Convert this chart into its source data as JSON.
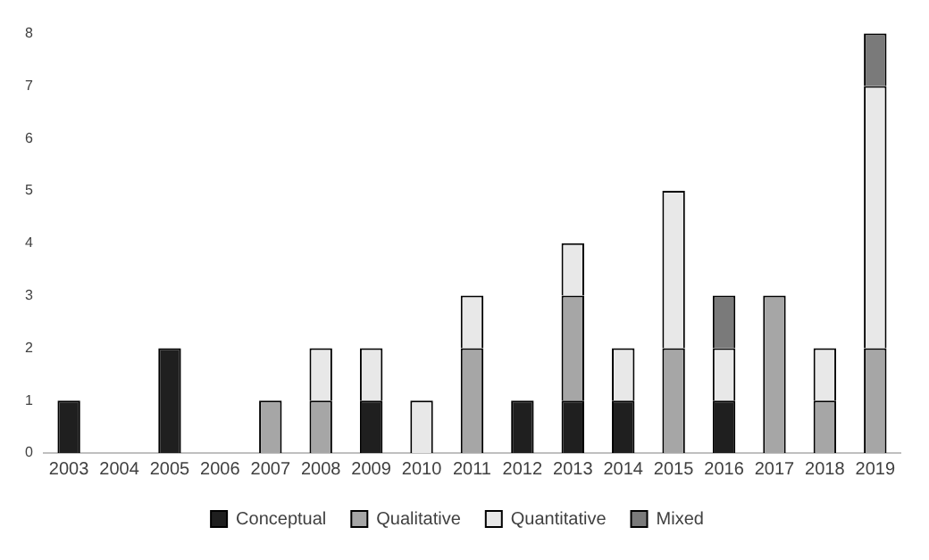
{
  "chart_data": {
    "type": "bar",
    "stacked": true,
    "categories": [
      "2003",
      "2004",
      "2005",
      "2006",
      "2007",
      "2008",
      "2009",
      "2010",
      "2011",
      "2012",
      "2013",
      "2014",
      "2015",
      "2016",
      "2017",
      "2018",
      "2019"
    ],
    "series": [
      {
        "name": "Conceptual",
        "color": "#1f1f1f",
        "values": [
          1,
          0,
          2,
          0,
          0,
          0,
          1,
          0,
          0,
          1,
          1,
          1,
          0,
          1,
          0,
          0,
          0
        ]
      },
      {
        "name": "Qualitative",
        "color": "#a6a6a6",
        "values": [
          0,
          0,
          0,
          0,
          1,
          1,
          0,
          0,
          2,
          0,
          2,
          0,
          2,
          0,
          3,
          1,
          2
        ]
      },
      {
        "name": "Quantitative",
        "color": "#e8e8e8",
        "values": [
          0,
          0,
          0,
          0,
          0,
          1,
          1,
          1,
          1,
          0,
          1,
          1,
          3,
          1,
          0,
          1,
          5
        ]
      },
      {
        "name": "Mixed",
        "color": "#7a7a7a",
        "values": [
          0,
          0,
          0,
          0,
          0,
          0,
          0,
          0,
          0,
          0,
          0,
          0,
          0,
          1,
          0,
          0,
          1
        ]
      }
    ],
    "ylim": [
      0,
      8
    ],
    "yticks": [
      0,
      1,
      2,
      3,
      4,
      5,
      6,
      7,
      8
    ],
    "grid": false,
    "legend": "bottom"
  }
}
